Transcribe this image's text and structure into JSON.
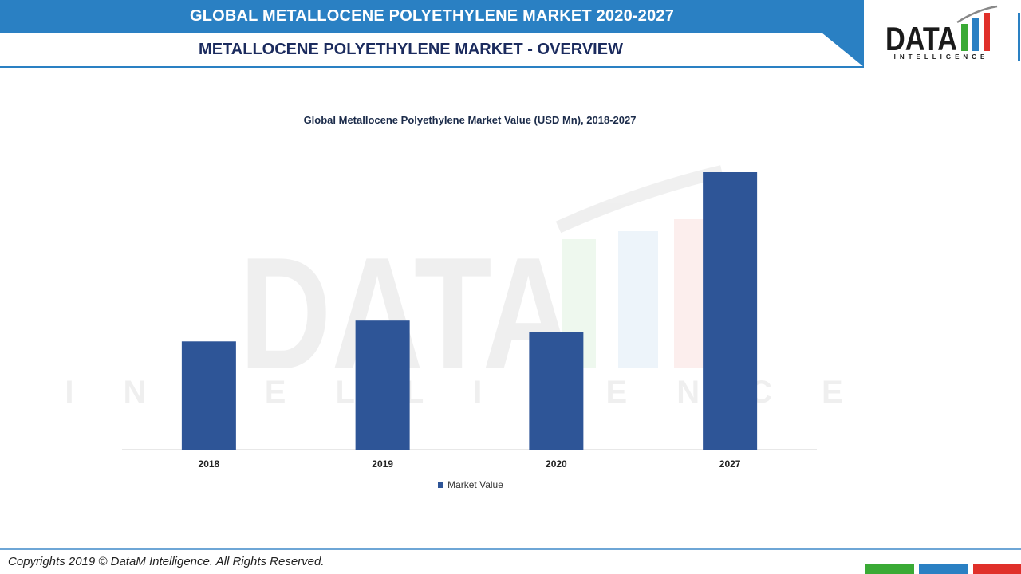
{
  "header": {
    "title": "GLOBAL METALLOCENE POLYETHYLENE MARKET 2020-2027",
    "subtitle": "METALLOCENE POLYETHYLENE MARKET - OVERVIEW"
  },
  "logo": {
    "word": "DATA",
    "tagline": "INTELLIGENCE"
  },
  "chart_data": {
    "type": "bar",
    "title": "Global Metallocene Polyethylene Market Value (USD Mn), 2018-2027",
    "categories": [
      "2018",
      "2019",
      "2020",
      "2027"
    ],
    "series": [
      {
        "name": "Market Value",
        "values": [
          39,
          46.5,
          42.5,
          100
        ]
      }
    ],
    "xlabel": "",
    "ylabel": "",
    "ylim": [
      0,
      100
    ],
    "grid": false,
    "legend": "bottom",
    "bar_color": "#2e5597"
  },
  "footer": {
    "copyright": "Copyrights 2019 © DataM Intelligence. All Rights Reserved."
  },
  "colors": {
    "banner": "#2a80c3",
    "subtitle_text": "#1b2b5e",
    "footer_green": "#3aaa35",
    "footer_blue": "#2a80c3",
    "footer_red": "#e0302a"
  }
}
